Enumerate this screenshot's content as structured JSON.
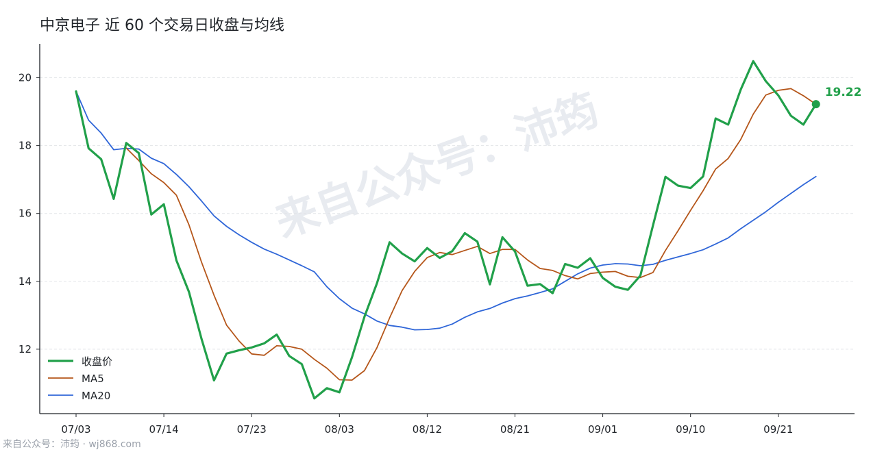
{
  "chart_data": {
    "type": "line",
    "title": "中京电子 近 60 个交易日收盘与均线",
    "x_ticks": [
      "07/03",
      "07/14",
      "07/23",
      "08/03",
      "08/12",
      "08/21",
      "09/01",
      "09/10",
      "09/21"
    ],
    "x_tick_indices": [
      0,
      7,
      14,
      21,
      28,
      35,
      42,
      49,
      56
    ],
    "n_points": 60,
    "ylim": [
      10.1,
      21.0
    ],
    "y_ticks": [
      12,
      14,
      16,
      18,
      20
    ],
    "grid": "horizontal dashed",
    "legend_position": "bottom-left",
    "series": [
      {
        "name": "收盘价",
        "color": "#21a04a",
        "values": [
          19.6,
          17.92,
          17.6,
          16.43,
          18.08,
          17.78,
          15.97,
          16.27,
          14.62,
          13.69,
          12.31,
          11.08,
          11.87,
          11.97,
          12.05,
          12.17,
          12.43,
          11.8,
          11.56,
          10.55,
          10.85,
          10.73,
          11.76,
          12.96,
          13.95,
          15.15,
          14.82,
          14.59,
          14.98,
          14.69,
          14.89,
          15.42,
          15.17,
          13.91,
          15.3,
          14.88,
          13.87,
          13.92,
          13.65,
          14.51,
          14.4,
          14.68,
          14.1,
          13.84,
          13.75,
          14.17,
          15.64,
          17.08,
          16.82,
          16.75,
          17.09,
          18.8,
          18.62,
          19.65,
          20.49,
          19.9,
          19.48,
          18.88,
          18.62,
          19.22
        ]
      },
      {
        "name": "MA5",
        "color": "#b5561a",
        "values": [
          null,
          null,
          null,
          null,
          17.93,
          17.56,
          17.17,
          16.91,
          16.54,
          15.67,
          14.57,
          13.59,
          12.71,
          12.24,
          11.86,
          11.82,
          12.1,
          12.08,
          12.0,
          11.7,
          11.44,
          11.1,
          11.09,
          11.37,
          12.05,
          12.92,
          13.73,
          14.29,
          14.7,
          14.85,
          14.79,
          14.91,
          15.03,
          14.82,
          14.94,
          14.94,
          14.63,
          14.38,
          14.32,
          14.17,
          14.07,
          14.23,
          14.27,
          14.29,
          14.15,
          14.11,
          14.26,
          14.91,
          15.49,
          16.09,
          16.67,
          17.31,
          17.62,
          18.18,
          18.93,
          19.49,
          19.63,
          19.68,
          19.47,
          19.22
        ]
      },
      {
        "name": "MA20",
        "color": "#2f66d8",
        "values": [
          19.6,
          18.75,
          18.37,
          17.88,
          17.92,
          17.9,
          17.63,
          17.47,
          17.15,
          16.79,
          16.37,
          15.93,
          15.62,
          15.37,
          15.15,
          14.95,
          14.8,
          14.63,
          14.46,
          14.28,
          13.84,
          13.49,
          13.21,
          13.04,
          12.83,
          12.7,
          12.65,
          12.57,
          12.58,
          12.62,
          12.74,
          12.94,
          13.1,
          13.2,
          13.36,
          13.49,
          13.57,
          13.67,
          13.78,
          14.0,
          14.22,
          14.39,
          14.48,
          14.52,
          14.51,
          14.46,
          14.5,
          14.62,
          14.72,
          14.82,
          14.93,
          15.1,
          15.28,
          15.55,
          15.8,
          16.05,
          16.33,
          16.59,
          16.85,
          17.09
        ]
      }
    ],
    "end_label": "19.22"
  },
  "watermark": "来自公众号：沛筠",
  "footer": "来自公众号：沛筠 · wj868.com"
}
